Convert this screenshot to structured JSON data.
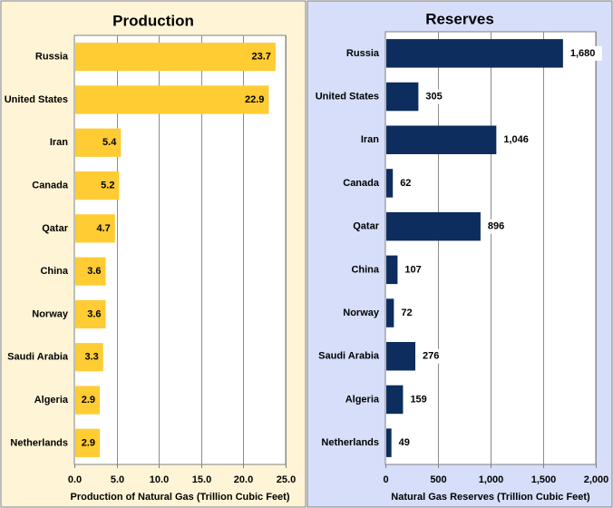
{
  "chart_data": [
    {
      "type": "bar",
      "orientation": "horizontal",
      "title": "Production",
      "xlabel": "Production of Natural Gas (Trillion Cubic Feet)",
      "ylabel": "",
      "xlim": [
        0,
        25
      ],
      "ticks": [
        0,
        5,
        10,
        15,
        20,
        25
      ],
      "tick_labels": [
        "0.0",
        "5.0",
        "10.0",
        "15.0",
        "20.0",
        "25.0"
      ],
      "grid": true,
      "categories": [
        "Russia",
        "United States",
        "Iran",
        "Canada",
        "Qatar",
        "China",
        "Norway",
        "Saudi Arabia",
        "Algeria",
        "Netherlands"
      ],
      "values": [
        23.7,
        22.9,
        5.4,
        5.2,
        4.7,
        3.6,
        3.6,
        3.3,
        2.9,
        2.9
      ],
      "value_labels": [
        "23.7",
        "22.9",
        "5.4",
        "5.2",
        "4.7",
        "3.6",
        "3.6",
        "3.3",
        "2.9",
        "2.9"
      ],
      "label_position": "inside-end",
      "bar_color": "#FFCC33",
      "panel_color": "#FFF5D6"
    },
    {
      "type": "bar",
      "orientation": "horizontal",
      "title": "Reserves",
      "xlabel": "Natural Gas Reserves (Trillion Cubic Feet)",
      "ylabel": "",
      "xlim": [
        0,
        2000
      ],
      "ticks": [
        0,
        500,
        1000,
        1500,
        2000
      ],
      "tick_labels": [
        "0",
        "500",
        "1,000",
        "1,500",
        "2,000"
      ],
      "grid": true,
      "categories": [
        "Russia",
        "United States",
        "Iran",
        "Canada",
        "Qatar",
        "China",
        "Norway",
        "Saudi Arabia",
        "Algeria",
        "Netherlands"
      ],
      "values": [
        1680,
        305,
        1046,
        62,
        896,
        107,
        72,
        276,
        159,
        49
      ],
      "value_labels": [
        "1,680",
        "305",
        "1,046",
        "62",
        "896",
        "107",
        "72",
        "276",
        "159",
        "49"
      ],
      "label_position": "outside-end",
      "bar_color": "#0D2D5E",
      "panel_color": "#D6DEFA"
    }
  ]
}
